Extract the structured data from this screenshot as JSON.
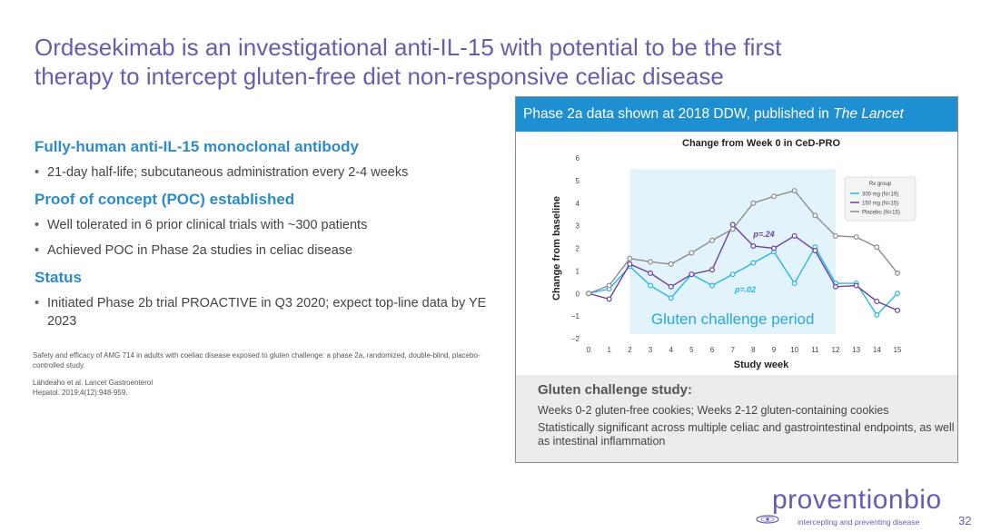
{
  "slide": {
    "title_line1": "Ordesekimab is an investigational anti-IL-15 with potential to be the first",
    "title_line2": "therapy to intercept gluten-free diet non-responsive celiac disease",
    "page_number": "32"
  },
  "left": {
    "sections": [
      {
        "heading": "Fully-human anti-IL-15 monoclonal antibody",
        "bullets": [
          "21-day half-life; subcutaneous administration every 2-4 weeks"
        ]
      },
      {
        "heading": "Proof of concept (POC) established",
        "bullets": [
          "Well tolerated in 6 prior clinical trials with ~300 patients",
          "Achieved POC in Phase 2a studies in celiac disease"
        ]
      },
      {
        "heading": "Status",
        "bullets": [
          "Initiated Phase 2b trial PROACTIVE in Q3 2020; expect top-line data by YE 2023"
        ]
      }
    ],
    "reference1": "Safety and efficacy of AMG 714 in adults with coeliac disease exposed to gluten challenge: a phase 2a, randomized, double-blind, placebo-controlled study.",
    "reference2_line1": "Lähdeaho et al. Lancet Gastroenterol",
    "reference2_line2": "Hepatol. 2019;4(12):948-959."
  },
  "panel": {
    "header_text": "Phase 2a data shown at 2018 DDW, published in ",
    "header_italic": "The Lancet",
    "foot_heading": "Gluten challenge study:",
    "foot_line1": "Weeks 0-2 gluten-free cookies; Weeks 2-12 gluten-containing cookies",
    "foot_line2": "Statistically significant across multiple celiac and gastrointestinal endpoints, as well as  intestinal inflammation"
  },
  "logo": {
    "wordmark": "proventionbio",
    "tagline": "intercepting and preventing disease"
  },
  "chart_data": {
    "type": "line",
    "title": "Change from Week 0 in CeD-PRO",
    "xlabel": "Study week",
    "ylabel": "Change from baseline",
    "x": [
      0,
      1,
      2,
      3,
      4,
      5,
      6,
      7,
      8,
      9,
      10,
      11,
      12,
      13,
      14,
      15
    ],
    "xlim": [
      0,
      15
    ],
    "ylim": [
      -2,
      6
    ],
    "yticks": [
      -2,
      -1,
      0,
      1,
      2,
      3,
      4,
      5,
      6
    ],
    "legend_title": "Rx group",
    "legend_position": "top-right",
    "shaded_region": {
      "x_start": 2,
      "x_end": 12,
      "label": "Gluten challenge period",
      "color": "#e3f3fb"
    },
    "series": [
      {
        "name": "300 mg (N=19)",
        "color": "#29b6e6",
        "values": [
          0,
          0.2,
          1.2,
          0.35,
          -0.2,
          0.85,
          0.35,
          0.85,
          1.35,
          1.85,
          0.45,
          2.05,
          0.45,
          0.45,
          -0.95,
          0.0
        ]
      },
      {
        "name": "150 mg (N=15)",
        "color": "#6b3fa0",
        "values": [
          0,
          -0.25,
          1.3,
          0.9,
          0.3,
          0.85,
          1.05,
          3.05,
          2.1,
          2.0,
          2.55,
          1.9,
          0.3,
          0.35,
          -0.35,
          -0.75
        ]
      },
      {
        "name": "Placebo (N=15)",
        "color": "#8c8c8c",
        "values": [
          0,
          0.35,
          1.55,
          1.4,
          1.3,
          1.8,
          2.35,
          2.85,
          4.0,
          4.3,
          4.55,
          3.45,
          2.55,
          2.5,
          2.05,
          0.9
        ]
      }
    ],
    "annotations": [
      {
        "text": "p=.24",
        "x": 8,
        "y": 2.5,
        "color": "#6b3fa0"
      },
      {
        "text": "p=.02",
        "x": 7.1,
        "y": 0.05,
        "color": "#29b6e6"
      }
    ]
  }
}
